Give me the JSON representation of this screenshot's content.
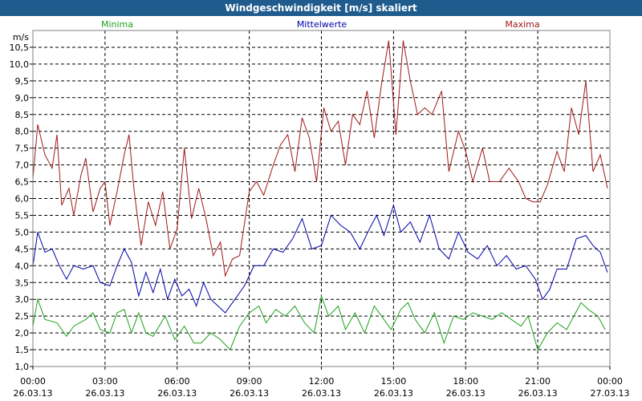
{
  "window": {
    "title": "Windgeschwindigkeit [m/s] skaliert"
  },
  "chart_data": {
    "type": "line",
    "title": "Windgeschwindigkeit [m/s] skaliert",
    "ylabel": "m/s",
    "xlabel": "",
    "ylim": [
      1.0,
      11.0
    ],
    "xlim": [
      0,
      24
    ],
    "grid": true,
    "y_ticks": [
      "1,0",
      "1,5",
      "2,0",
      "2,5",
      "3,0",
      "3,5",
      "4,0",
      "4,5",
      "5,0",
      "5,5",
      "6,0",
      "6,5",
      "7,0",
      "7,5",
      "8,0",
      "8,5",
      "9,0",
      "9,5",
      "10,0",
      "10,5"
    ],
    "x_ticks": [
      {
        "time": "00:00",
        "date": "26.03.13"
      },
      {
        "time": "03:00",
        "date": "26.03.13"
      },
      {
        "time": "06:00",
        "date": "26.03.13"
      },
      {
        "time": "09:00",
        "date": "26.03.13"
      },
      {
        "time": "12:00",
        "date": "26.03.13"
      },
      {
        "time": "15:00",
        "date": "26.03.13"
      },
      {
        "time": "18:00",
        "date": "26.03.13"
      },
      {
        "time": "21:00",
        "date": "26.03.13"
      },
      {
        "time": "00:00",
        "date": "27.03.13"
      }
    ],
    "series": [
      {
        "name": "Minima",
        "color": "#1ca01c",
        "points": [
          [
            0,
            2.2
          ],
          [
            0.2,
            3.0
          ],
          [
            0.5,
            2.4
          ],
          [
            1.0,
            2.3
          ],
          [
            1.4,
            1.9
          ],
          [
            1.7,
            2.2
          ],
          [
            2.2,
            2.4
          ],
          [
            2.5,
            2.6
          ],
          [
            2.8,
            2.1
          ],
          [
            3.2,
            2.0
          ],
          [
            3.5,
            2.6
          ],
          [
            3.8,
            2.7
          ],
          [
            4.1,
            2.0
          ],
          [
            4.4,
            2.6
          ],
          [
            4.7,
            2.0
          ],
          [
            5.0,
            1.9
          ],
          [
            5.5,
            2.5
          ],
          [
            5.9,
            1.8
          ],
          [
            6.3,
            2.2
          ],
          [
            6.7,
            1.7
          ],
          [
            7.0,
            1.7
          ],
          [
            7.4,
            2.0
          ],
          [
            7.8,
            1.8
          ],
          [
            8.2,
            1.5
          ],
          [
            8.6,
            2.2
          ],
          [
            9.0,
            2.6
          ],
          [
            9.4,
            2.8
          ],
          [
            9.7,
            2.3
          ],
          [
            10.1,
            2.7
          ],
          [
            10.5,
            2.5
          ],
          [
            10.9,
            2.8
          ],
          [
            11.3,
            2.3
          ],
          [
            11.7,
            2.0
          ],
          [
            12.0,
            3.1
          ],
          [
            12.3,
            2.5
          ],
          [
            12.7,
            2.8
          ],
          [
            13.0,
            2.1
          ],
          [
            13.4,
            2.6
          ],
          [
            13.8,
            2.0
          ],
          [
            14.2,
            2.8
          ],
          [
            14.6,
            2.4
          ],
          [
            14.9,
            2.1
          ],
          [
            15.3,
            2.7
          ],
          [
            15.6,
            2.9
          ],
          [
            15.9,
            2.4
          ],
          [
            16.3,
            2.0
          ],
          [
            16.7,
            2.6
          ],
          [
            17.1,
            1.7
          ],
          [
            17.5,
            2.5
          ],
          [
            17.9,
            2.4
          ],
          [
            18.3,
            2.6
          ],
          [
            18.7,
            2.5
          ],
          [
            19.1,
            2.4
          ],
          [
            19.5,
            2.6
          ],
          [
            19.9,
            2.4
          ],
          [
            20.3,
            2.2
          ],
          [
            20.6,
            2.5
          ],
          [
            21.0,
            1.5
          ],
          [
            21.4,
            2.0
          ],
          [
            21.8,
            2.3
          ],
          [
            22.2,
            2.1
          ],
          [
            22.5,
            2.5
          ],
          [
            22.8,
            2.9
          ],
          [
            23.1,
            2.7
          ],
          [
            23.5,
            2.5
          ],
          [
            23.8,
            2.1
          ]
        ]
      },
      {
        "name": "Mittelwerte",
        "color": "#0000a8",
        "points": [
          [
            0,
            4.0
          ],
          [
            0.2,
            5.0
          ],
          [
            0.5,
            4.4
          ],
          [
            0.8,
            4.5
          ],
          [
            1.1,
            4.0
          ],
          [
            1.4,
            3.6
          ],
          [
            1.7,
            4.0
          ],
          [
            2.1,
            3.9
          ],
          [
            2.5,
            4.0
          ],
          [
            2.8,
            3.5
          ],
          [
            3.2,
            3.4
          ],
          [
            3.5,
            4.0
          ],
          [
            3.8,
            4.5
          ],
          [
            4.1,
            4.1
          ],
          [
            4.4,
            3.1
          ],
          [
            4.7,
            3.8
          ],
          [
            5.0,
            3.2
          ],
          [
            5.3,
            3.9
          ],
          [
            5.6,
            3.0
          ],
          [
            5.9,
            3.6
          ],
          [
            6.2,
            3.1
          ],
          [
            6.5,
            3.3
          ],
          [
            6.8,
            2.8
          ],
          [
            7.1,
            3.5
          ],
          [
            7.4,
            3.0
          ],
          [
            7.7,
            2.8
          ],
          [
            8.0,
            2.6
          ],
          [
            8.4,
            3.0
          ],
          [
            8.8,
            3.4
          ],
          [
            9.2,
            4.0
          ],
          [
            9.6,
            4.0
          ],
          [
            10.0,
            4.5
          ],
          [
            10.4,
            4.4
          ],
          [
            10.8,
            4.8
          ],
          [
            11.2,
            5.4
          ],
          [
            11.6,
            4.5
          ],
          [
            12.0,
            4.6
          ],
          [
            12.4,
            5.5
          ],
          [
            12.8,
            5.2
          ],
          [
            13.2,
            5.0
          ],
          [
            13.6,
            4.5
          ],
          [
            14.0,
            5.1
          ],
          [
            14.3,
            5.5
          ],
          [
            14.6,
            4.9
          ],
          [
            15.0,
            5.8
          ],
          [
            15.3,
            5.0
          ],
          [
            15.7,
            5.3
          ],
          [
            16.1,
            4.7
          ],
          [
            16.5,
            5.5
          ],
          [
            16.9,
            4.5
          ],
          [
            17.3,
            4.2
          ],
          [
            17.7,
            5.0
          ],
          [
            18.1,
            4.4
          ],
          [
            18.5,
            4.2
          ],
          [
            18.9,
            4.6
          ],
          [
            19.3,
            4.0
          ],
          [
            19.7,
            4.3
          ],
          [
            20.1,
            3.9
          ],
          [
            20.5,
            4.0
          ],
          [
            20.9,
            3.6
          ],
          [
            21.2,
            3.0
          ],
          [
            21.5,
            3.3
          ],
          [
            21.8,
            3.9
          ],
          [
            22.2,
            3.9
          ],
          [
            22.6,
            4.8
          ],
          [
            23.0,
            4.9
          ],
          [
            23.3,
            4.6
          ],
          [
            23.6,
            4.4
          ],
          [
            23.9,
            3.8
          ]
        ]
      },
      {
        "name": "Maxima",
        "color": "#a01818",
        "points": [
          [
            0,
            6.6
          ],
          [
            0.2,
            8.2
          ],
          [
            0.5,
            7.3
          ],
          [
            0.8,
            6.9
          ],
          [
            1.0,
            7.9
          ],
          [
            1.2,
            5.8
          ],
          [
            1.5,
            6.3
          ],
          [
            1.7,
            5.5
          ],
          [
            2.0,
            6.7
          ],
          [
            2.2,
            7.2
          ],
          [
            2.5,
            5.6
          ],
          [
            2.8,
            6.3
          ],
          [
            3.0,
            6.5
          ],
          [
            3.2,
            5.2
          ],
          [
            3.5,
            6.2
          ],
          [
            3.8,
            7.3
          ],
          [
            4.0,
            7.9
          ],
          [
            4.2,
            6.3
          ],
          [
            4.5,
            4.6
          ],
          [
            4.8,
            5.9
          ],
          [
            5.1,
            5.2
          ],
          [
            5.4,
            6.2
          ],
          [
            5.7,
            4.5
          ],
          [
            6.0,
            5.1
          ],
          [
            6.3,
            7.5
          ],
          [
            6.6,
            5.4
          ],
          [
            6.9,
            6.3
          ],
          [
            7.2,
            5.4
          ],
          [
            7.5,
            4.3
          ],
          [
            7.8,
            4.7
          ],
          [
            8.0,
            3.7
          ],
          [
            8.3,
            4.2
          ],
          [
            8.6,
            4.3
          ],
          [
            9.0,
            6.2
          ],
          [
            9.3,
            6.5
          ],
          [
            9.6,
            6.1
          ],
          [
            10.0,
            7.0
          ],
          [
            10.3,
            7.6
          ],
          [
            10.6,
            7.9
          ],
          [
            10.9,
            6.8
          ],
          [
            11.2,
            8.4
          ],
          [
            11.5,
            7.8
          ],
          [
            11.8,
            6.5
          ],
          [
            12.1,
            8.7
          ],
          [
            12.4,
            8.0
          ],
          [
            12.7,
            8.3
          ],
          [
            13.0,
            7.0
          ],
          [
            13.3,
            8.5
          ],
          [
            13.6,
            8.2
          ],
          [
            13.9,
            9.2
          ],
          [
            14.2,
            7.8
          ],
          [
            14.5,
            9.4
          ],
          [
            14.8,
            10.7
          ],
          [
            15.1,
            7.9
          ],
          [
            15.4,
            10.7
          ],
          [
            15.7,
            9.5
          ],
          [
            16.0,
            8.5
          ],
          [
            16.3,
            8.7
          ],
          [
            16.6,
            8.5
          ],
          [
            17.0,
            9.2
          ],
          [
            17.3,
            6.8
          ],
          [
            17.7,
            8.0
          ],
          [
            18.0,
            7.4
          ],
          [
            18.3,
            6.5
          ],
          [
            18.7,
            7.5
          ],
          [
            19.0,
            6.5
          ],
          [
            19.4,
            6.5
          ],
          [
            19.8,
            6.9
          ],
          [
            20.2,
            6.5
          ],
          [
            20.5,
            6.0
          ],
          [
            20.8,
            5.9
          ],
          [
            21.1,
            5.9
          ],
          [
            21.4,
            6.4
          ],
          [
            21.8,
            7.4
          ],
          [
            22.1,
            6.8
          ],
          [
            22.4,
            8.7
          ],
          [
            22.7,
            7.9
          ],
          [
            23.0,
            9.5
          ],
          [
            23.3,
            6.8
          ],
          [
            23.6,
            7.3
          ],
          [
            23.9,
            6.3
          ]
        ]
      }
    ]
  }
}
